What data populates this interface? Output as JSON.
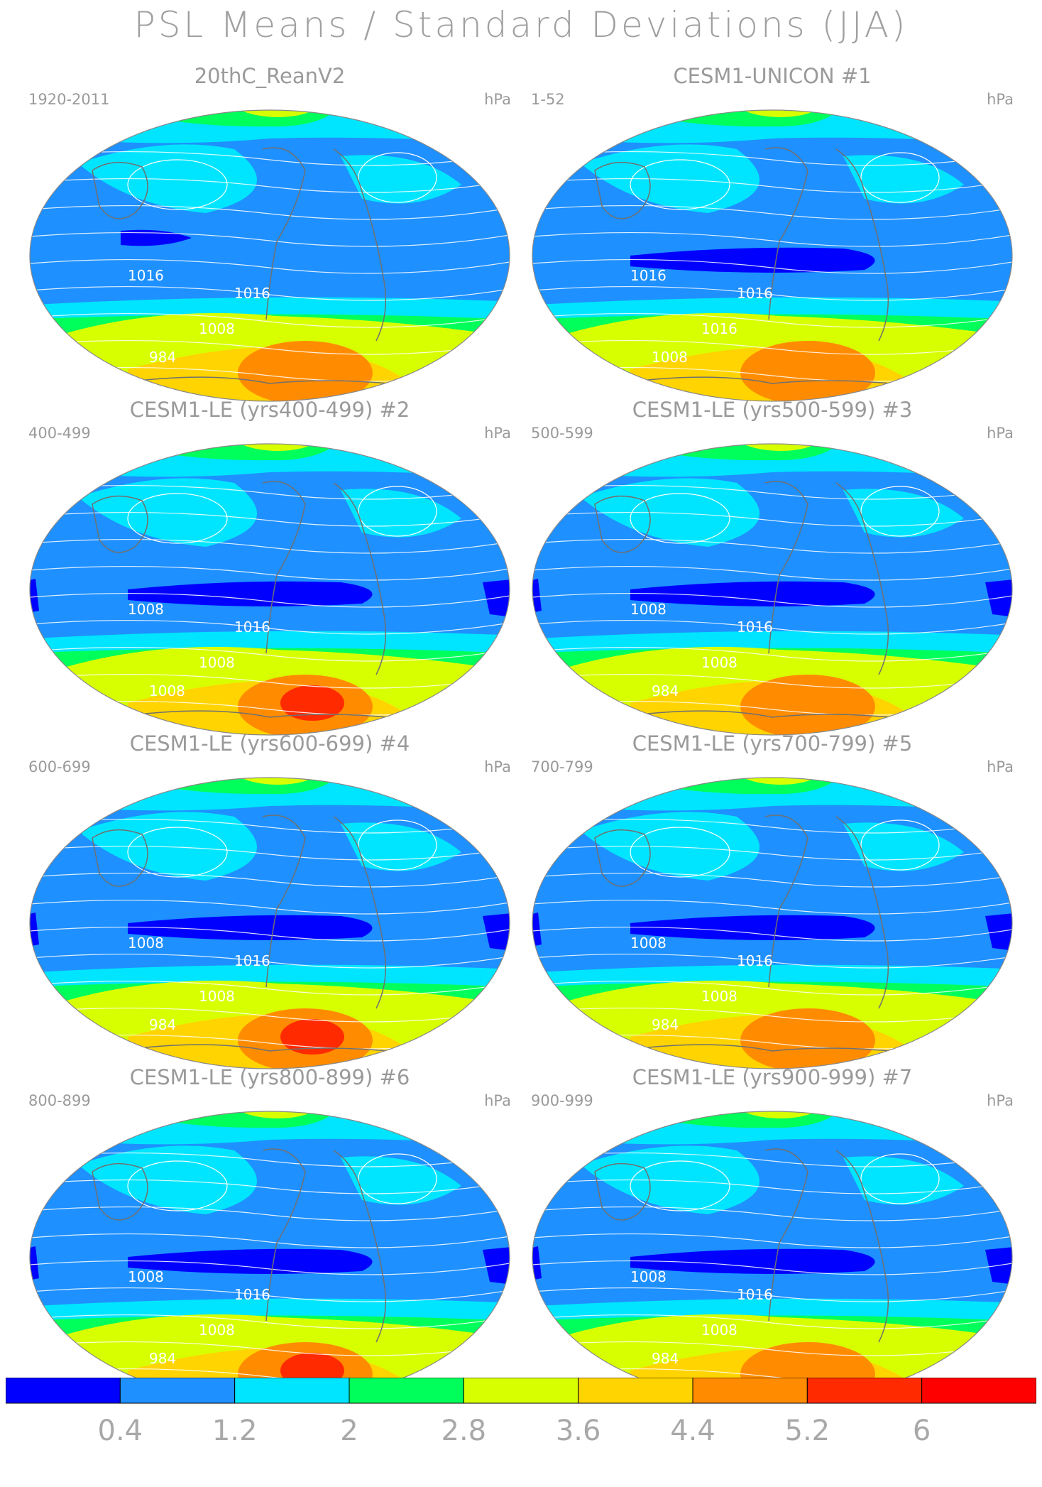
{
  "title": "PSL Means / Standard Deviations (JJA)",
  "panels": [
    {
      "title": "20thC_ReanV2",
      "number": "",
      "years": "1920-2011",
      "units": "hPa",
      "contour_labels": [
        "1016",
        "1016",
        "1008",
        "984"
      ]
    },
    {
      "title": "CESM1-UNICON",
      "number": "#1",
      "years": "1-52",
      "units": "hPa",
      "contour_labels": [
        "1016",
        "1016",
        "1016",
        "1008"
      ]
    },
    {
      "title": "CESM1-LE (yrs400-499)",
      "number": "#2",
      "years": "400-499",
      "units": "hPa",
      "contour_labels": [
        "1008",
        "1016",
        "1008",
        "1008"
      ]
    },
    {
      "title": "CESM1-LE (yrs500-599)",
      "number": "#3",
      "years": "500-599",
      "units": "hPa",
      "contour_labels": [
        "1008",
        "1016",
        "1008",
        "984"
      ]
    },
    {
      "title": "CESM1-LE (yrs600-699)",
      "number": "#4",
      "years": "600-699",
      "units": "hPa",
      "contour_labels": [
        "1008",
        "1016",
        "1008",
        "984"
      ]
    },
    {
      "title": "CESM1-LE (yrs700-799)",
      "number": "#5",
      "years": "700-799",
      "units": "hPa",
      "contour_labels": [
        "1008",
        "1016",
        "1008",
        "984"
      ]
    },
    {
      "title": "CESM1-LE (yrs800-899)",
      "number": "#6",
      "years": "800-899",
      "units": "hPa",
      "contour_labels": [
        "1008",
        "1016",
        "1008",
        "984"
      ]
    },
    {
      "title": "CESM1-LE (yrs900-999)",
      "number": "#7",
      "years": "900-999",
      "units": "hPa",
      "contour_labels": [
        "1008",
        "1016",
        "1008",
        "984"
      ]
    }
  ],
  "colorbar": {
    "colors": [
      "#0000ff",
      "#1e90ff",
      "#00e5ff",
      "#00ff5a",
      "#d8ff00",
      "#ffd400",
      "#ff8c00",
      "#ff2a00",
      "#ff0000"
    ],
    "labels": [
      "0.4",
      "1.2",
      "2",
      "2.8",
      "3.6",
      "4.4",
      "5.2",
      "6"
    ]
  },
  "colors": {
    "ocean_base": "#1e90ff",
    "contour": "#ffffff",
    "coast": "#707070"
  }
}
